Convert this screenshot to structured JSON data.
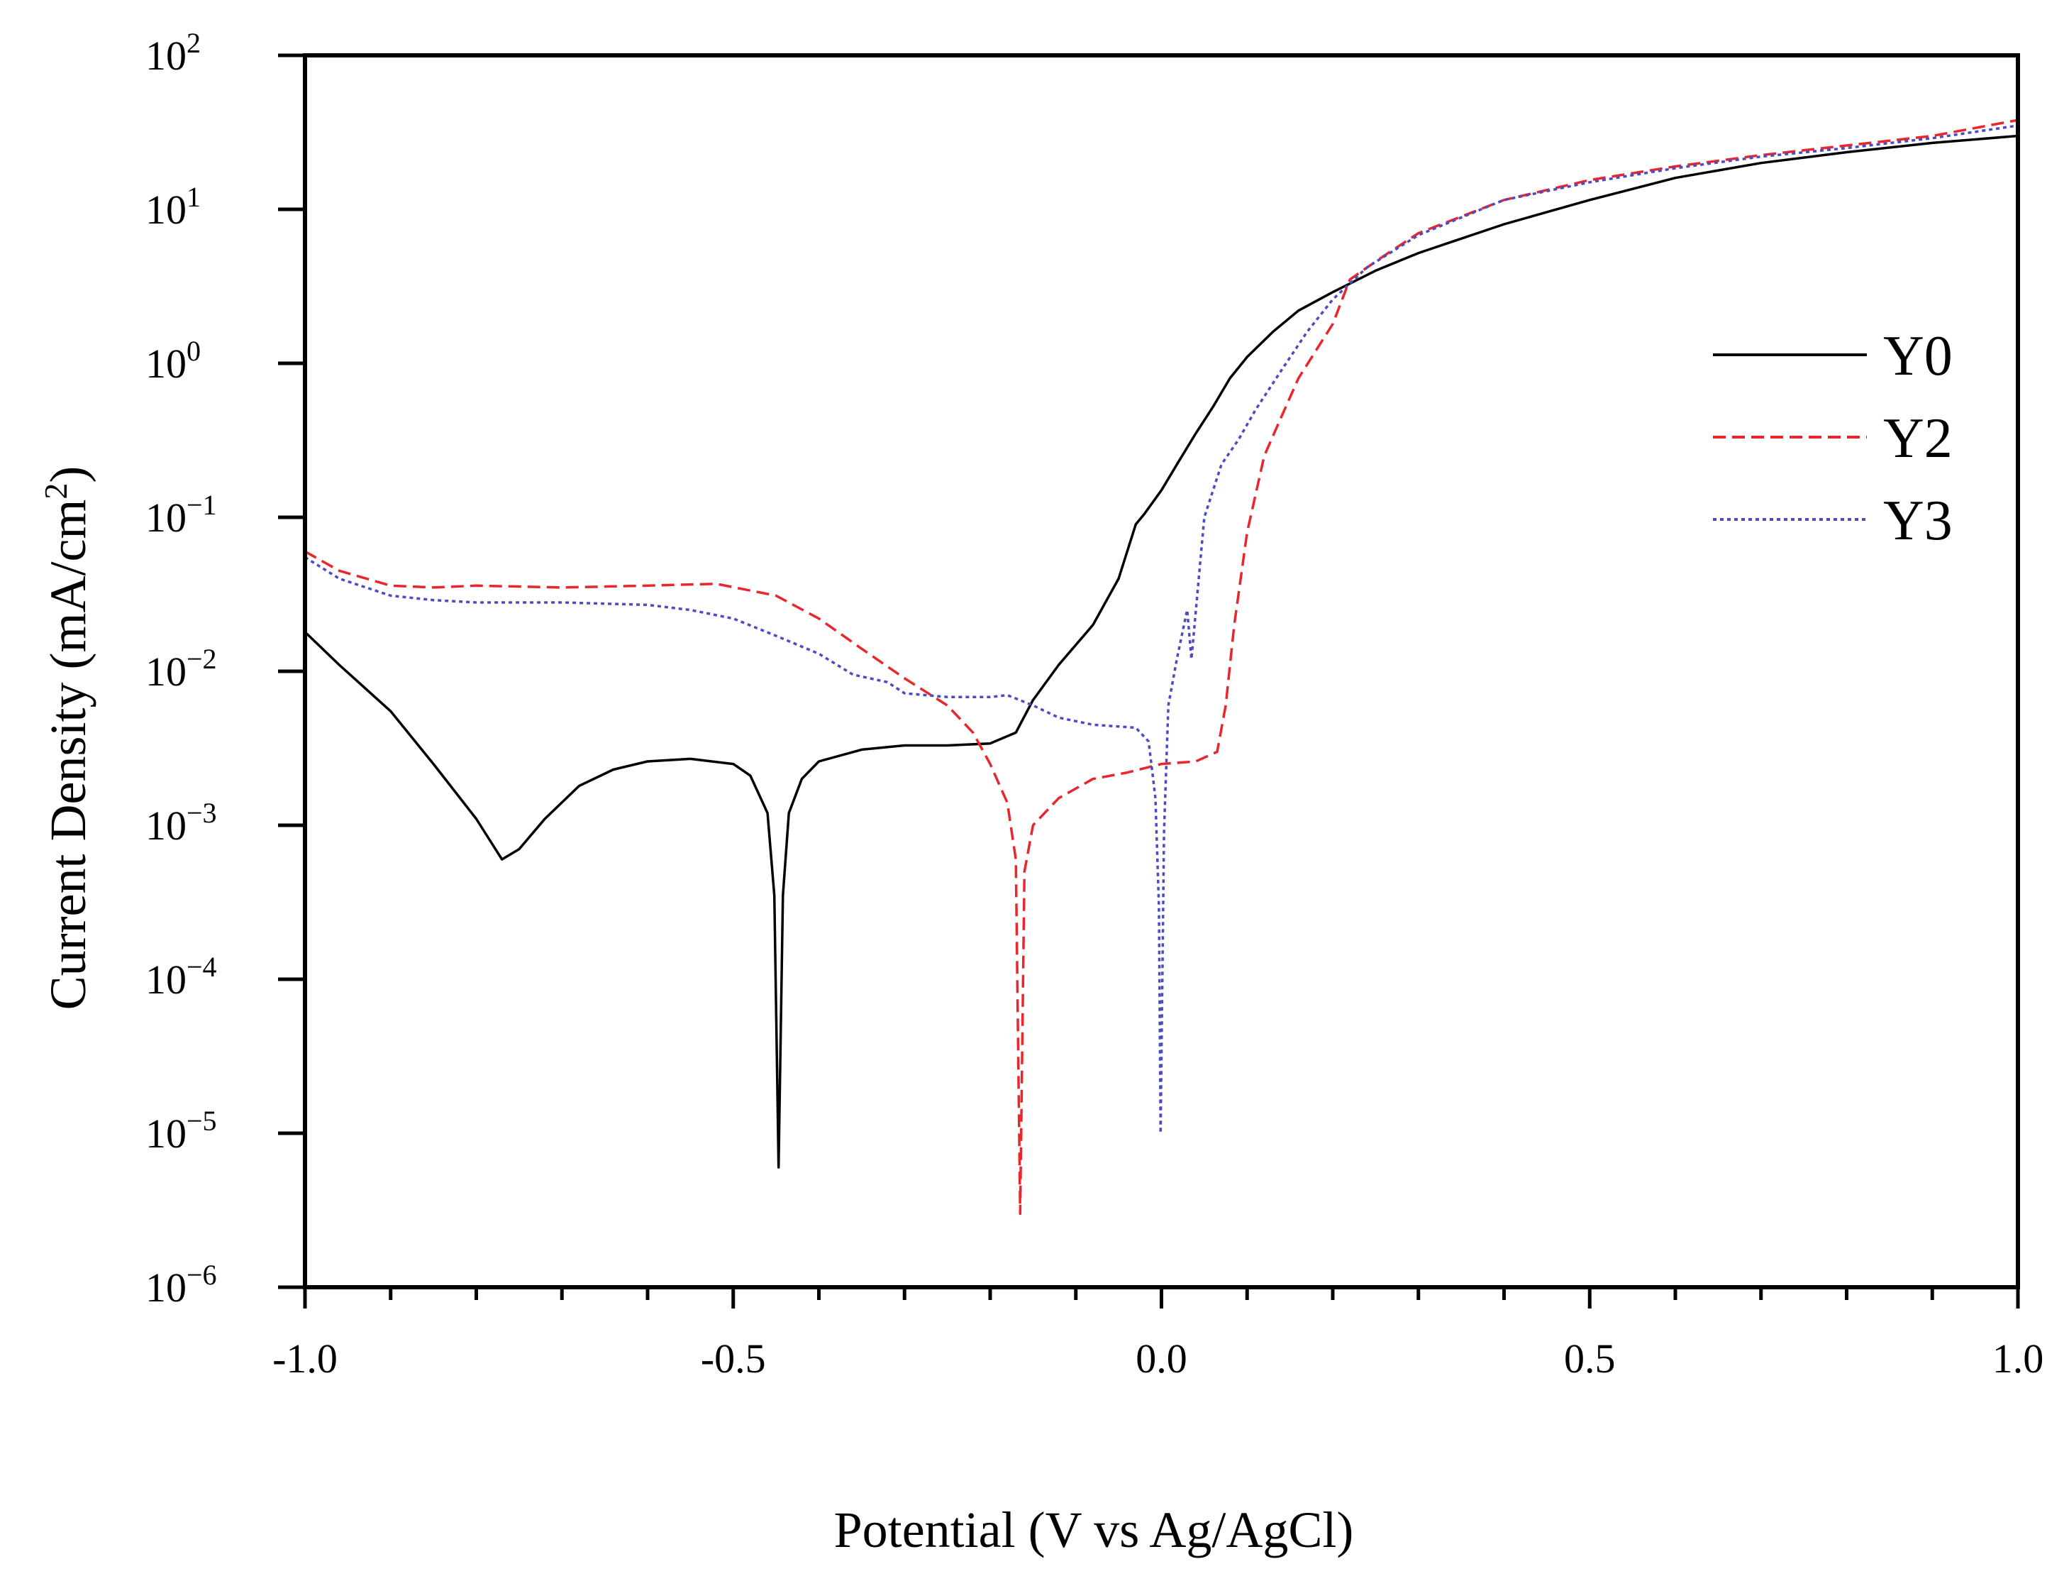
{
  "chart_data": {
    "type": "line",
    "xlabel": "Potential (V vs Ag/AgCl)",
    "ylabel_main": "Current Density (mA/cm",
    "ylabel_sup": "2",
    "ylabel_end": ")",
    "xlim": [
      -1.0,
      1.0
    ],
    "ylim": [
      1e-06,
      100
    ],
    "yscale": "log",
    "x_ticks": [
      -1.0,
      -0.5,
      0.0,
      0.5,
      1.0
    ],
    "x_tick_labels": [
      "-1.0",
      "-0.5",
      "0.0",
      "0.5",
      "1.0"
    ],
    "y_ticks": [
      {
        "value": 100,
        "base": "10",
        "exp": "2"
      },
      {
        "value": 10,
        "base": "10",
        "exp": "1"
      },
      {
        "value": 1,
        "base": "10",
        "exp": "0"
      },
      {
        "value": 0.1,
        "base": "10",
        "exp": "−1"
      },
      {
        "value": 0.01,
        "base": "10",
        "exp": "−2"
      },
      {
        "value": 0.001,
        "base": "10",
        "exp": "−3"
      },
      {
        "value": 0.0001,
        "base": "10",
        "exp": "−4"
      },
      {
        "value": 1e-05,
        "base": "10",
        "exp": "−5"
      },
      {
        "value": 1e-06,
        "base": "10",
        "exp": "−6"
      }
    ],
    "legend_position": "right",
    "series": [
      {
        "name": "Y0",
        "color": "#000000",
        "style": "solid",
        "points": [
          [
            -1.0,
            0.018
          ],
          [
            -0.96,
            0.011
          ],
          [
            -0.9,
            0.0055
          ],
          [
            -0.85,
            0.0025
          ],
          [
            -0.8,
            0.0011
          ],
          [
            -0.77,
            0.0006
          ],
          [
            -0.75,
            0.0007
          ],
          [
            -0.72,
            0.0011
          ],
          [
            -0.68,
            0.0018
          ],
          [
            -0.64,
            0.0023
          ],
          [
            -0.6,
            0.0026
          ],
          [
            -0.55,
            0.0027
          ],
          [
            -0.5,
            0.0025
          ],
          [
            -0.48,
            0.0021
          ],
          [
            -0.46,
            0.0012
          ],
          [
            -0.452,
            0.00035
          ],
          [
            -0.447,
            6e-06
          ],
          [
            -0.442,
            0.00035
          ],
          [
            -0.435,
            0.0012
          ],
          [
            -0.42,
            0.002
          ],
          [
            -0.4,
            0.0026
          ],
          [
            -0.35,
            0.0031
          ],
          [
            -0.3,
            0.0033
          ],
          [
            -0.25,
            0.0033
          ],
          [
            -0.2,
            0.0034
          ],
          [
            -0.17,
            0.004
          ],
          [
            -0.15,
            0.0065
          ],
          [
            -0.12,
            0.011
          ],
          [
            -0.08,
            0.02
          ],
          [
            -0.05,
            0.04
          ],
          [
            -0.03,
            0.09
          ],
          [
            -0.02,
            0.105
          ],
          [
            0.0,
            0.15
          ],
          [
            0.02,
            0.23
          ],
          [
            0.04,
            0.35
          ],
          [
            0.06,
            0.52
          ],
          [
            0.08,
            0.8
          ],
          [
            0.1,
            1.1
          ],
          [
            0.13,
            1.6
          ],
          [
            0.16,
            2.2
          ],
          [
            0.2,
            2.9
          ],
          [
            0.25,
            4.0
          ],
          [
            0.3,
            5.2
          ],
          [
            0.4,
            8.0
          ],
          [
            0.5,
            11.5
          ],
          [
            0.6,
            16.0
          ],
          [
            0.7,
            20.0
          ],
          [
            0.8,
            23.5
          ],
          [
            0.9,
            27.0
          ],
          [
            1.0,
            30.0
          ]
        ]
      },
      {
        "name": "Y2",
        "color": "#e8262b",
        "style": "dashed",
        "points": [
          [
            -1.0,
            0.06
          ],
          [
            -0.96,
            0.045
          ],
          [
            -0.9,
            0.036
          ],
          [
            -0.85,
            0.035
          ],
          [
            -0.8,
            0.036
          ],
          [
            -0.7,
            0.035
          ],
          [
            -0.6,
            0.036
          ],
          [
            -0.52,
            0.037
          ],
          [
            -0.45,
            0.031
          ],
          [
            -0.4,
            0.022
          ],
          [
            -0.35,
            0.014
          ],
          [
            -0.3,
            0.009
          ],
          [
            -0.25,
            0.006
          ],
          [
            -0.22,
            0.004
          ],
          [
            -0.2,
            0.0025
          ],
          [
            -0.18,
            0.0014
          ],
          [
            -0.17,
            0.0006
          ],
          [
            -0.165,
            3e-06
          ],
          [
            -0.16,
            0.0005
          ],
          [
            -0.15,
            0.001
          ],
          [
            -0.12,
            0.0015
          ],
          [
            -0.08,
            0.002
          ],
          [
            -0.04,
            0.0022
          ],
          [
            0.0,
            0.0025
          ],
          [
            0.04,
            0.0026
          ],
          [
            0.065,
            0.003
          ],
          [
            0.075,
            0.006
          ],
          [
            0.085,
            0.02
          ],
          [
            0.1,
            0.08
          ],
          [
            0.12,
            0.25
          ],
          [
            0.14,
            0.45
          ],
          [
            0.16,
            0.8
          ],
          [
            0.18,
            1.2
          ],
          [
            0.2,
            1.8
          ],
          [
            0.22,
            3.5
          ],
          [
            0.26,
            5.0
          ],
          [
            0.3,
            7.0
          ],
          [
            0.4,
            11.5
          ],
          [
            0.5,
            15.5
          ],
          [
            0.6,
            19.0
          ],
          [
            0.7,
            22.5
          ],
          [
            0.8,
            26.0
          ],
          [
            0.9,
            30.0
          ],
          [
            1.0,
            38.0
          ]
        ]
      },
      {
        "name": "Y3",
        "color": "#4b4bc4",
        "style": "dotted",
        "points": [
          [
            -1.0,
            0.055
          ],
          [
            -0.96,
            0.04
          ],
          [
            -0.9,
            0.031
          ],
          [
            -0.85,
            0.029
          ],
          [
            -0.8,
            0.028
          ],
          [
            -0.7,
            0.028
          ],
          [
            -0.6,
            0.027
          ],
          [
            -0.55,
            0.025
          ],
          [
            -0.5,
            0.022
          ],
          [
            -0.45,
            0.017
          ],
          [
            -0.4,
            0.013
          ],
          [
            -0.36,
            0.0095
          ],
          [
            -0.32,
            0.0085
          ],
          [
            -0.3,
            0.0072
          ],
          [
            -0.25,
            0.0068
          ],
          [
            -0.2,
            0.0068
          ],
          [
            -0.18,
            0.007
          ],
          [
            -0.15,
            0.006
          ],
          [
            -0.12,
            0.005
          ],
          [
            -0.08,
            0.0045
          ],
          [
            -0.03,
            0.0043
          ],
          [
            -0.015,
            0.0035
          ],
          [
            -0.007,
            0.0015
          ],
          [
            -0.003,
            0.0003
          ],
          [
            -0.001,
            1e-05
          ],
          [
            0.003,
            0.0009
          ],
          [
            0.008,
            0.006
          ],
          [
            0.018,
            0.012
          ],
          [
            0.03,
            0.025
          ],
          [
            0.035,
            0.012
          ],
          [
            0.05,
            0.1
          ],
          [
            0.07,
            0.22
          ],
          [
            0.09,
            0.32
          ],
          [
            0.11,
            0.5
          ],
          [
            0.14,
            0.9
          ],
          [
            0.17,
            1.6
          ],
          [
            0.2,
            2.6
          ],
          [
            0.24,
            4.2
          ],
          [
            0.3,
            6.8
          ],
          [
            0.4,
            11.5
          ],
          [
            0.5,
            15.0
          ],
          [
            0.6,
            18.5
          ],
          [
            0.7,
            22.0
          ],
          [
            0.8,
            25.0
          ],
          [
            0.9,
            29.0
          ],
          [
            1.0,
            35.0
          ]
        ]
      }
    ]
  }
}
